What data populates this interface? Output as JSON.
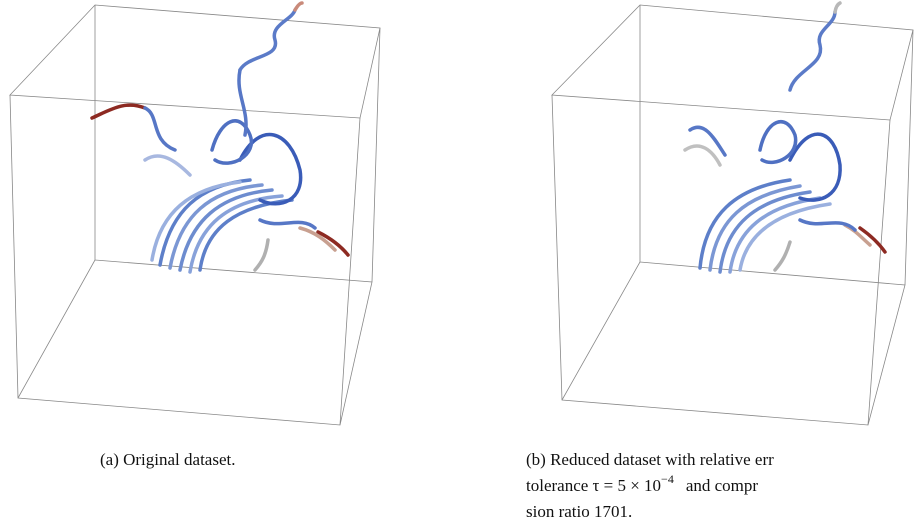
{
  "captions": [
    {
      "text": "(a) Original dataset."
    },
    {
      "lines": [
        "(b) Reduced dataset with relative err",
        "tolerance τ = 5 × 10",
        "−4",
        "and compr",
        "sion ratio 1701."
      ]
    }
  ]
}
